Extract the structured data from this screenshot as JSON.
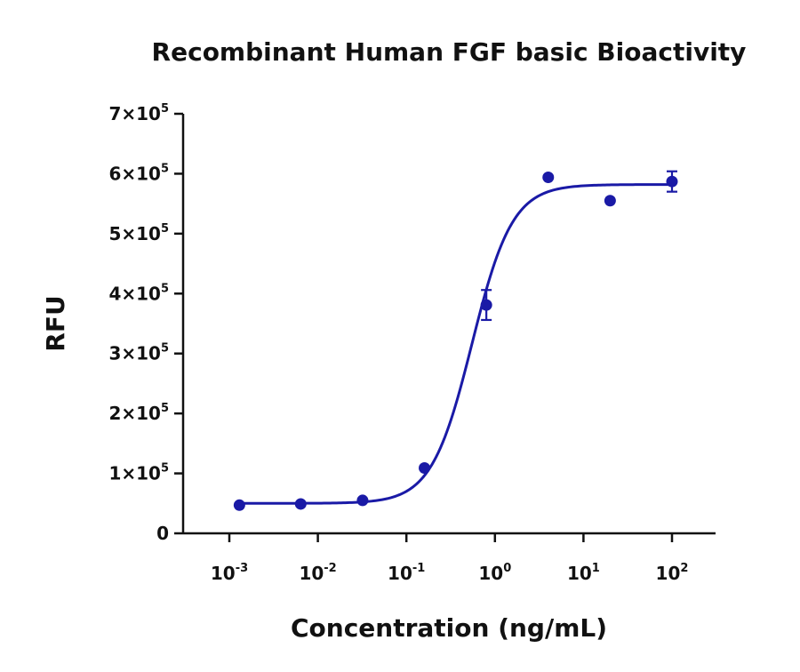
{
  "chart_data": {
    "type": "scatter",
    "title": "Recombinant Human FGF basic Bioactivity",
    "xlabel": "Concentration (ng/mL)",
    "ylabel": "RFU",
    "x_scale": "log",
    "xlim": [
      0.001,
      100
    ],
    "ylim": [
      0,
      700000
    ],
    "grid": false,
    "x_ticks": [
      {
        "base": "10",
        "exp": "-3"
      },
      {
        "base": "10",
        "exp": "-2"
      },
      {
        "base": "10",
        "exp": "-1"
      },
      {
        "base": "10",
        "exp": "0"
      },
      {
        "base": "10",
        "exp": "1"
      },
      {
        "base": "10",
        "exp": "2"
      }
    ],
    "y_ticks": [
      {
        "value": 0,
        "mant": "0",
        "exp": ""
      },
      {
        "value": 100000,
        "mant": "1×10",
        "exp": "5"
      },
      {
        "value": 200000,
        "mant": "2×10",
        "exp": "5"
      },
      {
        "value": 300000,
        "mant": "3×10",
        "exp": "5"
      },
      {
        "value": 400000,
        "mant": "4×10",
        "exp": "5"
      },
      {
        "value": 500000,
        "mant": "5×10",
        "exp": "5"
      },
      {
        "value": 600000,
        "mant": "6×10",
        "exp": "5"
      },
      {
        "value": 700000,
        "mant": "7×10",
        "exp": "5"
      }
    ],
    "series": [
      {
        "color": "#1a1aa6",
        "points": [
          {
            "x": 0.0013,
            "y": 47000
          },
          {
            "x": 0.0064,
            "y": 49000
          },
          {
            "x": 0.032,
            "y": 55000
          },
          {
            "x": 0.16,
            "y": 109000
          },
          {
            "x": 0.8,
            "y": 381000,
            "err": 25000
          },
          {
            "x": 4.0,
            "y": 594000
          },
          {
            "x": 20,
            "y": 555000
          },
          {
            "x": 100,
            "y": 587000,
            "err": 17000
          }
        ],
        "fit": {
          "bottom": 50000,
          "top": 582000,
          "ec50": 0.55,
          "hill": 1.9
        }
      }
    ]
  }
}
